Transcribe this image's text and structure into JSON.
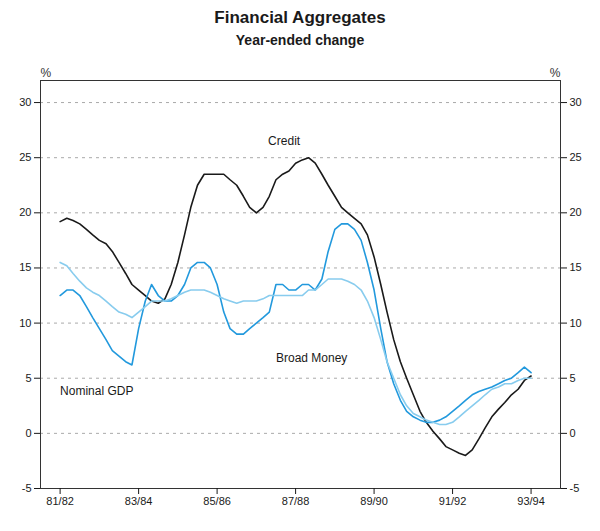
{
  "chart_data": {
    "type": "line",
    "title": "Financial Aggregates",
    "subtitle": "Year-ended change",
    "ylabel": "%",
    "y2label": "%",
    "xlim": [
      1981.5,
      1994.75
    ],
    "xticks": [
      {
        "value": 1982,
        "label": "81/82"
      },
      {
        "value": 1984,
        "label": "83/84"
      },
      {
        "value": 1986,
        "label": "85/86"
      },
      {
        "value": 1988,
        "label": "87/88"
      },
      {
        "value": 1990,
        "label": "89/90"
      },
      {
        "value": 1992,
        "label": "91/92"
      },
      {
        "value": 1994,
        "label": "93/94"
      }
    ],
    "ylim": [
      -5,
      32
    ],
    "yticks": [
      -5,
      0,
      5,
      10,
      15,
      20,
      25,
      30
    ],
    "y2lim": [
      -5,
      32
    ],
    "y2ticks": [
      -5,
      0,
      5,
      10,
      15,
      20,
      25,
      30
    ],
    "grid": true,
    "x": [
      1982.0,
      1982.17,
      1982.33,
      1982.5,
      1982.67,
      1982.83,
      1983.0,
      1983.17,
      1983.33,
      1983.5,
      1983.67,
      1983.83,
      1984.0,
      1984.17,
      1984.33,
      1984.5,
      1984.67,
      1984.83,
      1985.0,
      1985.17,
      1985.33,
      1985.5,
      1985.67,
      1985.83,
      1986.0,
      1986.17,
      1986.33,
      1986.5,
      1986.67,
      1986.83,
      1987.0,
      1987.17,
      1987.33,
      1987.5,
      1987.67,
      1987.83,
      1988.0,
      1988.17,
      1988.33,
      1988.5,
      1988.67,
      1988.83,
      1989.0,
      1989.17,
      1989.33,
      1989.5,
      1989.67,
      1989.83,
      1990.0,
      1990.17,
      1990.33,
      1990.5,
      1990.67,
      1990.83,
      1991.0,
      1991.17,
      1991.33,
      1991.5,
      1991.67,
      1991.83,
      1992.0,
      1992.17,
      1992.33,
      1992.5,
      1992.67,
      1992.83,
      1993.0,
      1993.17,
      1993.33,
      1993.5,
      1993.67,
      1993.83,
      1994.0
    ],
    "series": [
      {
        "name": "Credit",
        "color": "#1a1a1a",
        "values": [
          19.2,
          19.5,
          19.3,
          19.0,
          18.5,
          18.0,
          17.5,
          17.2,
          16.5,
          15.5,
          14.5,
          13.5,
          13.0,
          12.5,
          12.0,
          11.8,
          12.2,
          13.5,
          15.5,
          18.0,
          20.5,
          22.5,
          23.5,
          23.5,
          23.5,
          23.5,
          23.0,
          22.5,
          21.5,
          20.5,
          20.0,
          20.5,
          21.5,
          23.0,
          23.5,
          23.8,
          24.5,
          24.8,
          25.0,
          24.5,
          23.5,
          22.5,
          21.5,
          20.5,
          20.0,
          19.5,
          19.0,
          18.0,
          16.0,
          13.5,
          11.0,
          8.5,
          6.5,
          5.0,
          3.5,
          2.0,
          1.0,
          0.2,
          -0.5,
          -1.2,
          -1.5,
          -1.8,
          -2.0,
          -1.5,
          -0.5,
          0.5,
          1.5,
          2.2,
          2.8,
          3.5,
          4.0,
          4.8,
          5.2
        ]
      },
      {
        "name": "Broad Money",
        "color": "#2299dd",
        "values": [
          12.5,
          13.0,
          13.0,
          12.5,
          11.5,
          10.5,
          9.5,
          8.5,
          7.5,
          7.0,
          6.5,
          6.2,
          9.5,
          12.0,
          13.5,
          12.5,
          12.0,
          12.0,
          12.5,
          13.5,
          15.0,
          15.5,
          15.5,
          15.0,
          13.5,
          11.0,
          9.5,
          9.0,
          9.0,
          9.5,
          10.0,
          10.5,
          11.0,
          13.5,
          13.5,
          13.0,
          13.0,
          13.5,
          13.5,
          13.0,
          14.0,
          16.5,
          18.5,
          19.0,
          19.0,
          18.5,
          17.5,
          15.5,
          13.0,
          9.5,
          6.5,
          4.5,
          3.0,
          2.0,
          1.5,
          1.2,
          1.0,
          1.0,
          1.2,
          1.5,
          2.0,
          2.5,
          3.0,
          3.5,
          3.8,
          4.0,
          4.2,
          4.5,
          4.8,
          5.0,
          5.5,
          6.0,
          5.5
        ]
      },
      {
        "name": "Nominal GDP",
        "color": "#88ccee",
        "values": [
          15.5,
          15.2,
          14.5,
          13.8,
          13.2,
          12.8,
          12.5,
          12.0,
          11.5,
          11.0,
          10.8,
          10.5,
          11.0,
          11.5,
          12.0,
          12.0,
          12.0,
          12.2,
          12.5,
          12.8,
          13.0,
          13.0,
          13.0,
          12.8,
          12.5,
          12.2,
          12.0,
          11.8,
          12.0,
          12.0,
          12.0,
          12.2,
          12.5,
          12.5,
          12.5,
          12.5,
          12.5,
          12.5,
          13.0,
          13.0,
          13.5,
          14.0,
          14.0,
          14.0,
          13.8,
          13.5,
          13.0,
          12.0,
          10.5,
          8.5,
          6.5,
          5.0,
          3.5,
          2.5,
          1.8,
          1.5,
          1.2,
          1.0,
          0.8,
          0.8,
          1.0,
          1.5,
          2.0,
          2.5,
          3.0,
          3.5,
          4.0,
          4.2,
          4.5,
          4.5,
          4.8,
          5.0,
          5.0
        ]
      }
    ],
    "annotations": [
      {
        "text": "Credit",
        "x": 1987.3,
        "y": 26.5
      },
      {
        "text": "Broad Money",
        "x": 1987.5,
        "y": 6.8
      },
      {
        "text": "Nominal GDP",
        "x": 1982.0,
        "y": 3.8
      }
    ]
  }
}
